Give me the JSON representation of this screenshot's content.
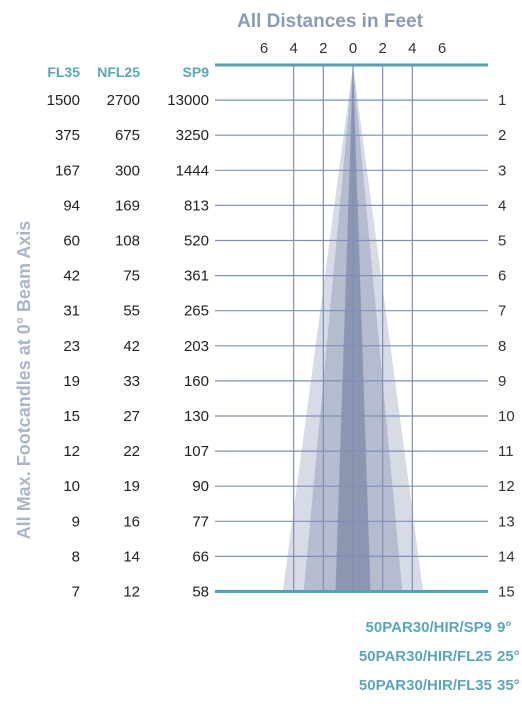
{
  "chart_data": {
    "type": "table",
    "title": "All Distances in Feet",
    "ylabel": "All Max. Footcandles at 0° Beam Axis",
    "x_ticks": [
      "6",
      "4",
      "2",
      "0",
      "2",
      "4",
      "6"
    ],
    "xlim": [
      -6,
      6
    ],
    "columns": [
      "FL35",
      "NFL25",
      "SP9"
    ],
    "distances": [
      1,
      2,
      3,
      4,
      5,
      6,
      7,
      8,
      9,
      10,
      11,
      12,
      13,
      14,
      15
    ],
    "rows": [
      [
        "1500",
        "2700",
        "13000"
      ],
      [
        "375",
        "675",
        "3250"
      ],
      [
        "167",
        "300",
        "1444"
      ],
      [
        "94",
        "169",
        "813"
      ],
      [
        "60",
        "108",
        "520"
      ],
      [
        "42",
        "75",
        "361"
      ],
      [
        "31",
        "55",
        "265"
      ],
      [
        "23",
        "42",
        "203"
      ],
      [
        "19",
        "33",
        "160"
      ],
      [
        "15",
        "27",
        "130"
      ],
      [
        "12",
        "22",
        "107"
      ],
      [
        "10",
        "19",
        "90"
      ],
      [
        "9",
        "16",
        "77"
      ],
      [
        "8",
        "14",
        "66"
      ],
      [
        "7",
        "12",
        "58"
      ]
    ],
    "beams": [
      {
        "name": "50PAR30/HIR/FL35",
        "angle_label": "35°",
        "angle_deg": 35,
        "color": "#c9cfdc"
      },
      {
        "name": "50PAR30/HIR/FL25",
        "angle_label": "25°",
        "angle_deg": 25,
        "color": "#a9b2c8"
      },
      {
        "name": "50PAR30/HIR/SP9",
        "angle_label": "9°",
        "angle_deg": 9,
        "color": "#7f89a6"
      }
    ],
    "colors": {
      "grid": "#7f8fb6",
      "axis": "#4fa3b7",
      "header": "#5aa6bd",
      "title": "#8a9bb7"
    }
  }
}
